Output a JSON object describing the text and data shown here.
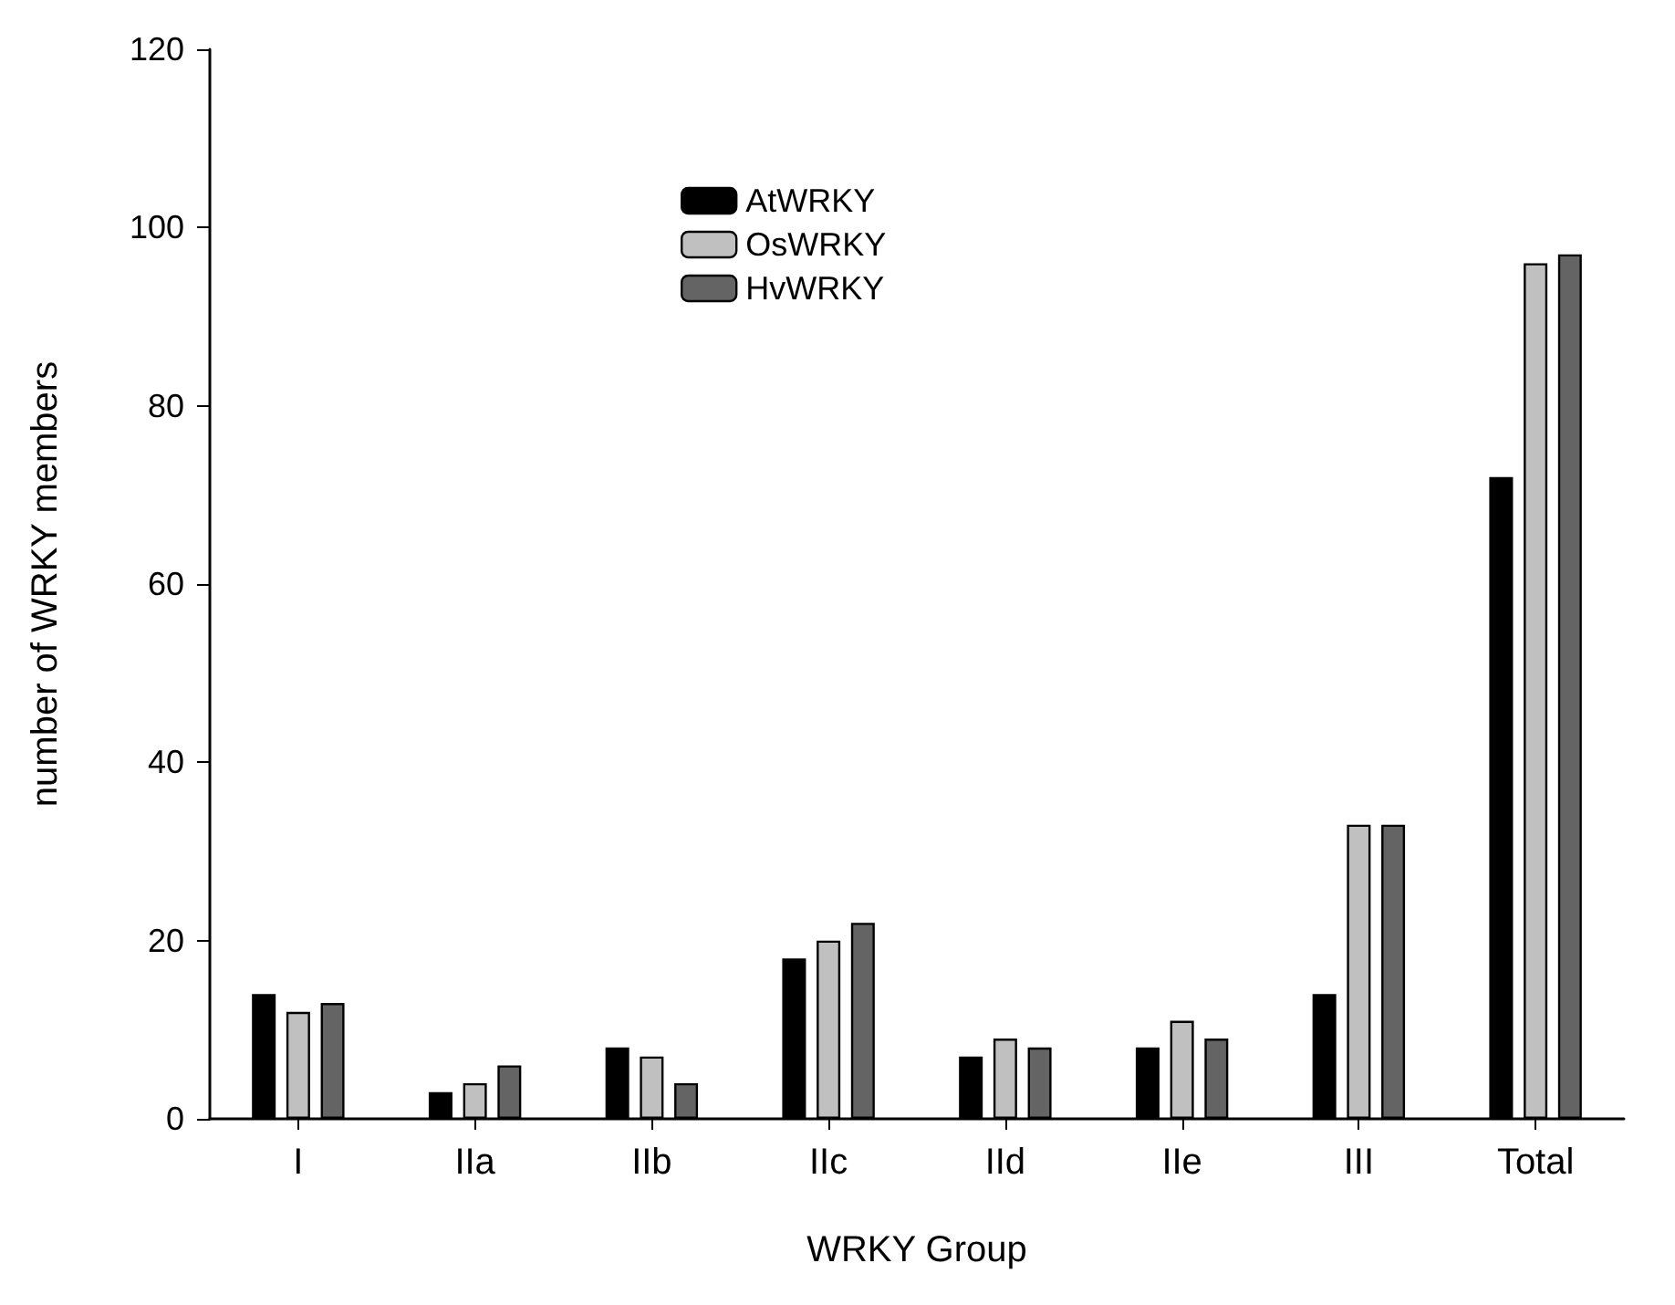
{
  "chart_data": {
    "type": "bar",
    "xlabel": "WRKY Group",
    "ylabel": "number of WRKY members",
    "categories": [
      "I",
      "IIa",
      "IIb",
      "IIc",
      "IId",
      "IIe",
      "III",
      "Total"
    ],
    "series": [
      {
        "name": "AtWRKY",
        "color": "#000000",
        "values": [
          14,
          3,
          8,
          18,
          7,
          8,
          14,
          72
        ]
      },
      {
        "name": "OsWRKY",
        "color": "#c0c0c0",
        "values": [
          12,
          4,
          7,
          20,
          9,
          11,
          33,
          96
        ]
      },
      {
        "name": "HvWRKY",
        "color": "#646464",
        "values": [
          13,
          6,
          4,
          22,
          8,
          9,
          33,
          97
        ]
      }
    ],
    "ylim": [
      0,
      120
    ],
    "yticks": [
      0,
      20,
      40,
      60,
      80,
      100,
      120
    ],
    "grid": false,
    "legend": "top"
  }
}
